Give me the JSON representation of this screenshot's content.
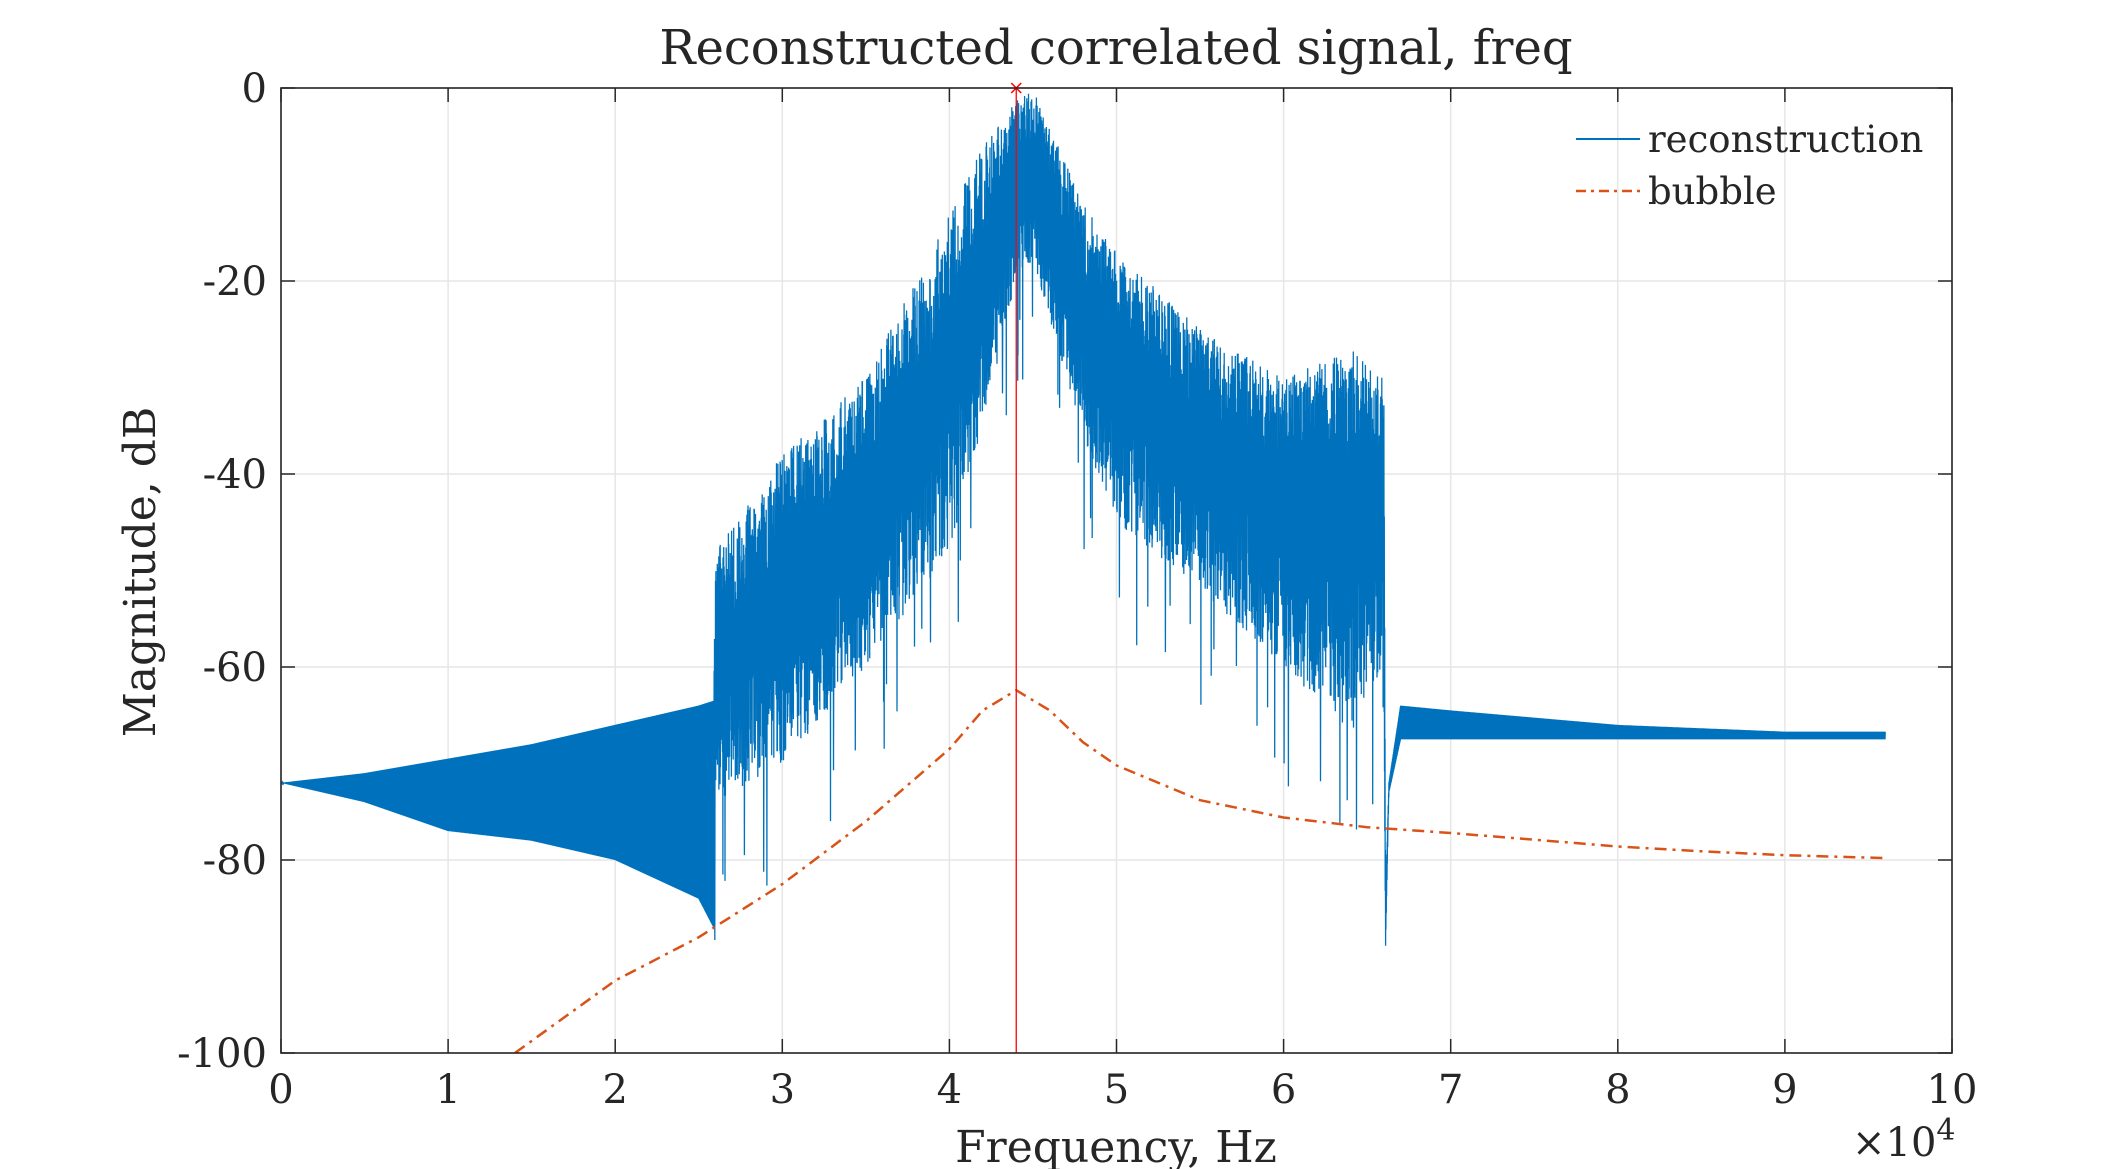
{
  "chart_data": {
    "type": "line",
    "title": "Reconstructed correlated signal, freq",
    "xlabel": "Frequency, Hz",
    "ylabel": "Magnitude, dB",
    "x_exponent_label": "×10",
    "x_exponent_power": "4",
    "xlim": [
      0,
      100000
    ],
    "ylim": [
      -100,
      0
    ],
    "x_ticks": [
      0,
      10000,
      20000,
      30000,
      40000,
      50000,
      60000,
      70000,
      80000,
      90000,
      100000
    ],
    "x_tick_labels": [
      "0",
      "1",
      "2",
      "3",
      "4",
      "5",
      "6",
      "7",
      "8",
      "9",
      "10"
    ],
    "y_ticks": [
      0,
      -20,
      -40,
      -60,
      -80,
      -100
    ],
    "y_tick_labels": [
      "0",
      "-20",
      "-40",
      "-60",
      "-80",
      "-100"
    ],
    "grid": true,
    "legend_position": "top-right",
    "peak_marker": {
      "x": 44000,
      "y": 0,
      "color": "#ff0000"
    },
    "series": [
      {
        "name": "reconstruction",
        "color": "#0072bd",
        "style": "solid",
        "envelope": {
          "x": [
            0,
            5000,
            10000,
            15000,
            20000,
            25000,
            25900,
            26000,
            30000,
            35000,
            40000,
            42000,
            44000,
            45000,
            48000,
            50000,
            55000,
            60000,
            64000,
            66000,
            66100,
            66300,
            67000,
            70000,
            80000,
            90000,
            96000
          ],
          "upper": [
            -72,
            -71,
            -69.5,
            -68,
            -66,
            -64,
            -63.5,
            -48,
            -38,
            -30,
            -13,
            -6,
            -1,
            0,
            -12,
            -17,
            -25,
            -30,
            -27,
            -30,
            -84,
            -72,
            -64,
            -64.5,
            -66,
            -66.7,
            -66.7
          ],
          "lower": [
            -72,
            -74,
            -77,
            -78,
            -80,
            -84,
            -87,
            -74,
            -70,
            -60,
            -48,
            -35,
            -20,
            -18,
            -36,
            -45,
            -52,
            -60,
            -67,
            -60,
            -89,
            -73,
            -67.5,
            -67.5,
            -67.5,
            -67.5,
            -67.5
          ]
        }
      },
      {
        "name": "bubble",
        "color": "#d95319",
        "style": "dash-dot",
        "x": [
          14000,
          20000,
          25000,
          30000,
          35000,
          40000,
          42000,
          44000,
          46000,
          48000,
          50000,
          55000,
          60000,
          65000,
          70000,
          75000,
          80000,
          85000,
          90000,
          96000
        ],
        "y": [
          -100,
          -92.5,
          -88,
          -82.5,
          -76,
          -68.5,
          -64.5,
          -62.4,
          -64.5,
          -67.8,
          -70.2,
          -73.8,
          -75.6,
          -76.6,
          -77.2,
          -77.9,
          -78.6,
          -79.1,
          -79.5,
          -79.8
        ]
      }
    ]
  }
}
